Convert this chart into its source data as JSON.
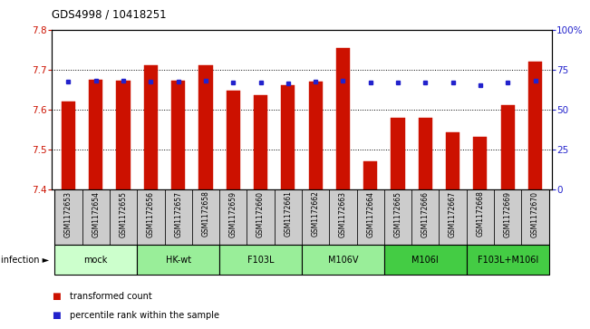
{
  "title": "GDS4998 / 10418251",
  "samples": [
    "GSM1172653",
    "GSM1172654",
    "GSM1172655",
    "GSM1172656",
    "GSM1172657",
    "GSM1172658",
    "GSM1172659",
    "GSM1172660",
    "GSM1172661",
    "GSM1172662",
    "GSM1172663",
    "GSM1172664",
    "GSM1172665",
    "GSM1172666",
    "GSM1172667",
    "GSM1172668",
    "GSM1172669",
    "GSM1172670"
  ],
  "bar_values": [
    7.62,
    7.675,
    7.672,
    7.71,
    7.672,
    7.71,
    7.648,
    7.635,
    7.66,
    7.669,
    7.753,
    7.47,
    7.578,
    7.578,
    7.542,
    7.532,
    7.61,
    7.72
  ],
  "percentile_values": [
    67.5,
    68,
    68,
    67.5,
    67.5,
    68,
    67,
    67,
    66.5,
    67.5,
    68,
    67,
    67,
    67,
    67,
    65,
    67,
    68
  ],
  "groups": [
    {
      "label": "mock",
      "start": 0,
      "end": 3,
      "color": "#ccffcc"
    },
    {
      "label": "HK-wt",
      "start": 3,
      "end": 6,
      "color": "#99ee99"
    },
    {
      "label": "F103L",
      "start": 6,
      "end": 9,
      "color": "#99ee99"
    },
    {
      "label": "M106V",
      "start": 9,
      "end": 12,
      "color": "#99ee99"
    },
    {
      "label": "M106I",
      "start": 12,
      "end": 15,
      "color": "#44cc44"
    },
    {
      "label": "F103L+M106I",
      "start": 15,
      "end": 18,
      "color": "#44cc44"
    }
  ],
  "ylim": [
    7.4,
    7.8
  ],
  "yticks": [
    7.4,
    7.5,
    7.6,
    7.7,
    7.8
  ],
  "y2lim": [
    0,
    100
  ],
  "y2ticks": [
    0,
    25,
    50,
    75,
    100
  ],
  "y2ticklabels": [
    "0",
    "25",
    "50",
    "75",
    "100%"
  ],
  "bar_color": "#cc1100",
  "dot_color": "#2222cc",
  "bar_bottom": 7.4,
  "bar_width": 0.5,
  "cell_color": "#cccccc",
  "infection_label": "infection ►"
}
